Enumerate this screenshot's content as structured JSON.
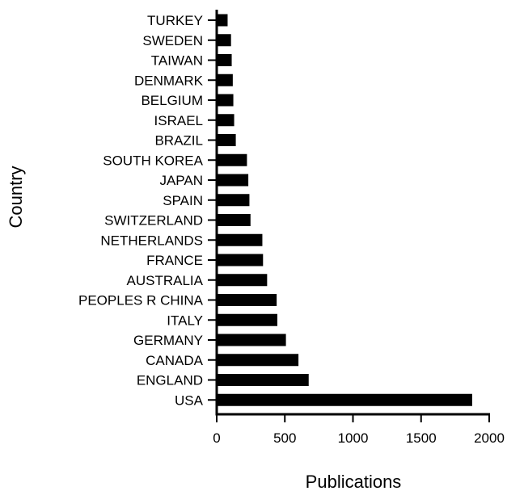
{
  "chart_data": {
    "type": "bar",
    "orientation": "horizontal",
    "title": "",
    "xlabel": "Publications",
    "ylabel": "Country",
    "xlim": [
      0,
      2000
    ],
    "xticks": [
      0,
      500,
      1000,
      1500,
      2000
    ],
    "grid": false,
    "bar_color": "#000000",
    "categories": [
      "TURKEY",
      "SWEDEN",
      "TAIWAN",
      "DENMARK",
      "BELGIUM",
      "ISRAEL",
      "BRAZIL",
      "SOUTH KOREA",
      "JAPAN",
      "SPAIN",
      "SWITZERLAND",
      "NETHERLANDS",
      "FRANCE",
      "AUSTRALIA",
      "PEOPLES R CHINA",
      "ITALY",
      "GERMANY",
      "CANADA",
      "ENGLAND",
      "USA"
    ],
    "values": [
      80,
      105,
      110,
      118,
      122,
      128,
      140,
      222,
      232,
      240,
      248,
      335,
      340,
      370,
      440,
      445,
      508,
      600,
      675,
      1875
    ]
  }
}
